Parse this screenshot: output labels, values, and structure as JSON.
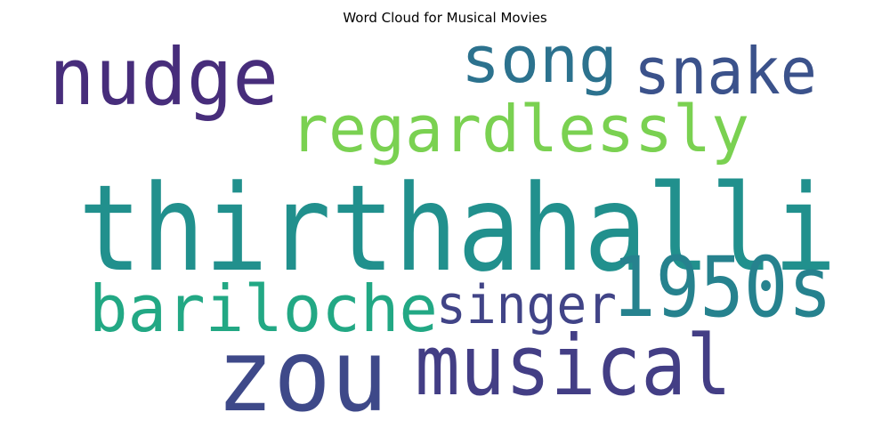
{
  "chart_data": {
    "type": "wordcloud",
    "title": "Word Cloud for Musical Movies",
    "words": [
      {
        "text": "thirthahalli",
        "color": "#21908d"
      },
      {
        "text": "nudge",
        "color": "#472d7b"
      },
      {
        "text": "song",
        "color": "#2c728e"
      },
      {
        "text": "snake",
        "color": "#3b528b"
      },
      {
        "text": "regardlessly",
        "color": "#7ad151"
      },
      {
        "text": "1950s",
        "color": "#26828e"
      },
      {
        "text": "bariloche",
        "color": "#22a884"
      },
      {
        "text": "singer",
        "color": "#414487"
      },
      {
        "text": "musical",
        "color": "#433e85"
      },
      {
        "text": "zou",
        "color": "#3e4989"
      }
    ]
  }
}
